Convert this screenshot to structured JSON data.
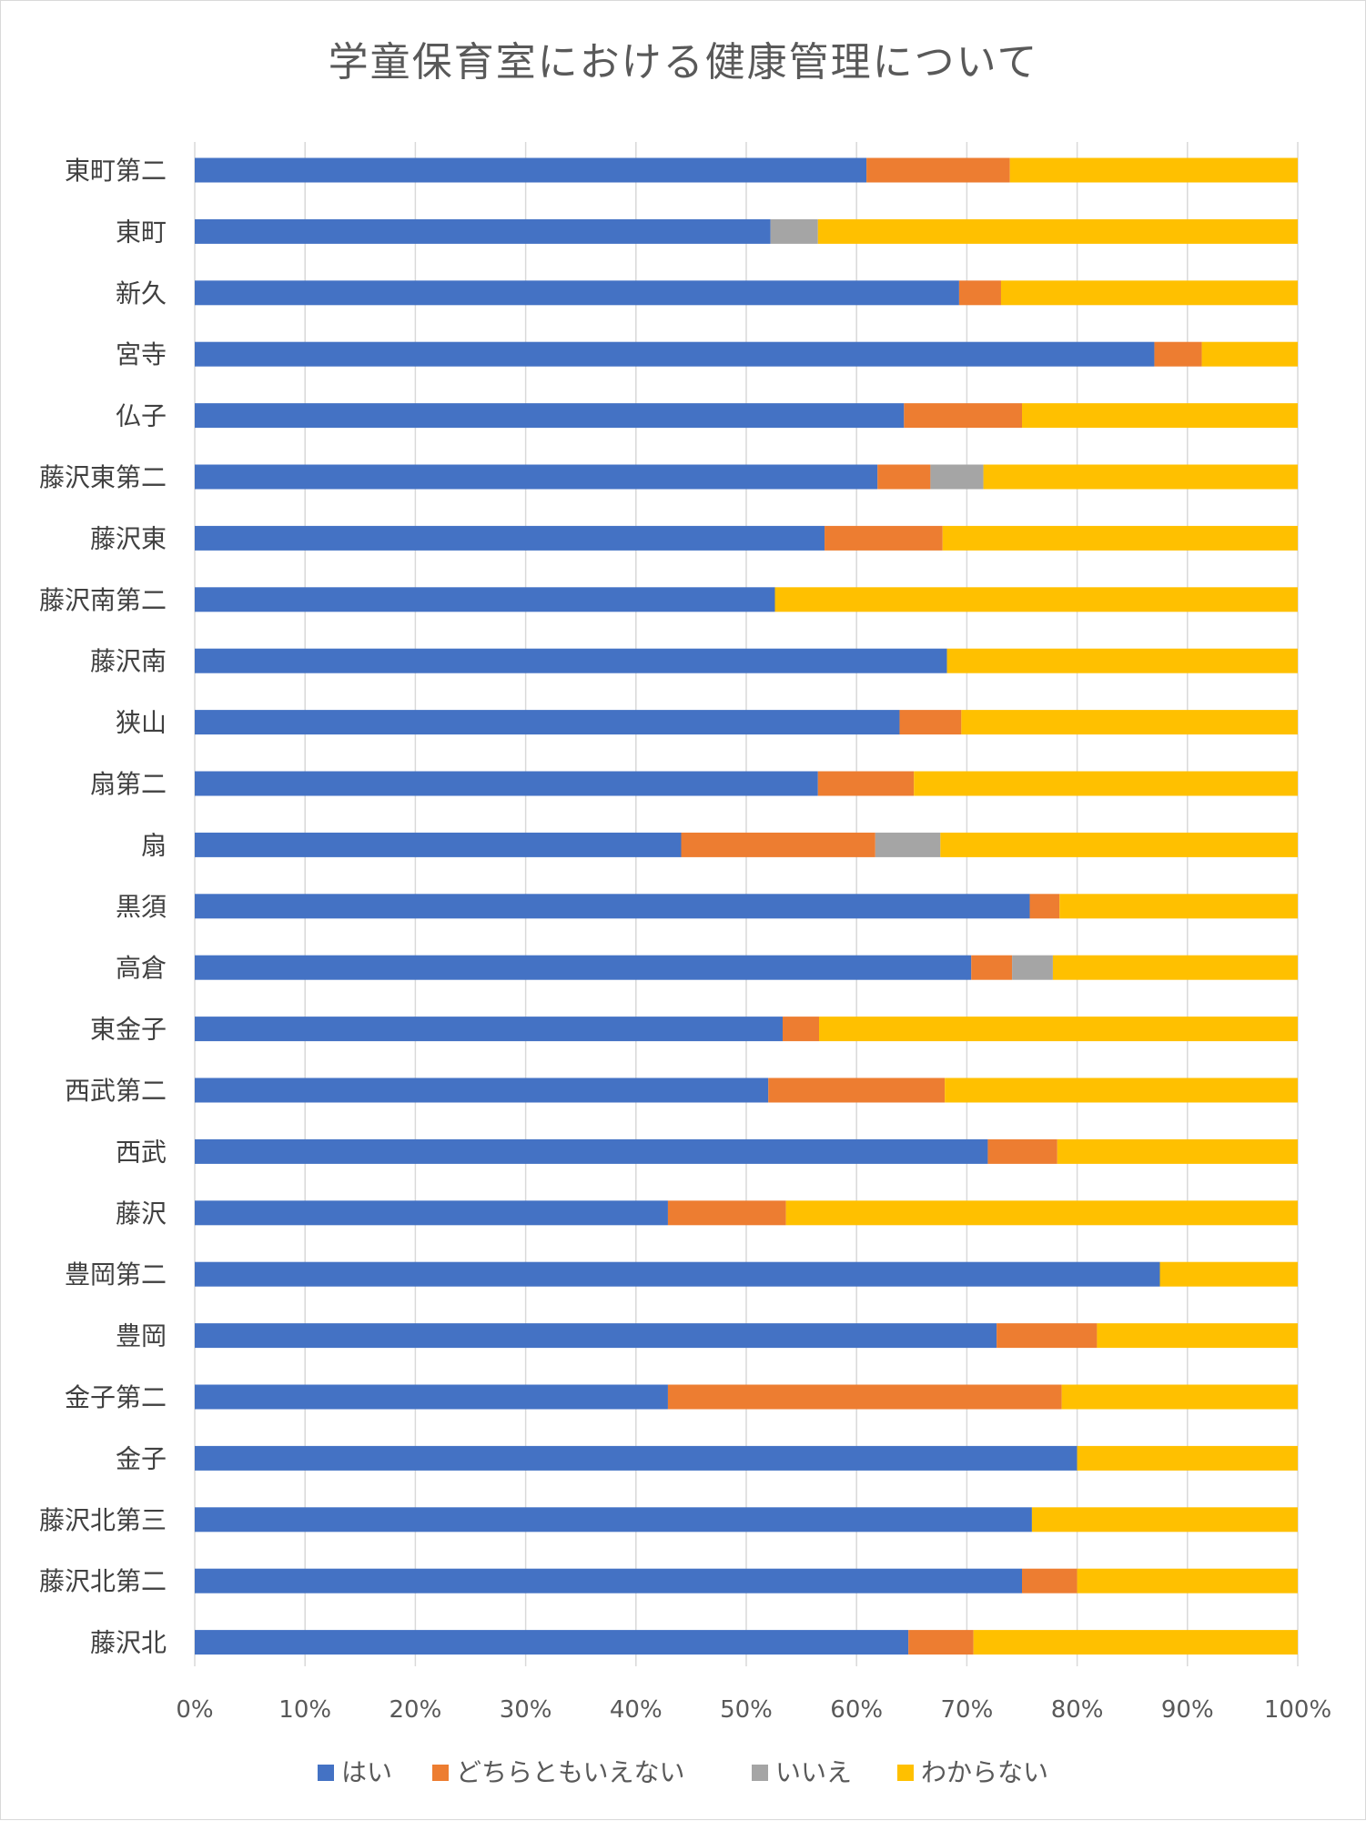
{
  "chart_data": {
    "type": "bar",
    "orientation": "horizontal",
    "stacked": "percent",
    "title": "学童保育室における健康管理について",
    "categories": [
      "東町第二",
      "東町",
      "新久",
      "宮寺",
      "仏子",
      "藤沢東第二",
      "藤沢東",
      "藤沢南第二",
      "藤沢南",
      "狭山",
      "扇第二",
      "扇",
      "黒須",
      "高倉",
      "東金子",
      "西武第二",
      "西武",
      "藤沢",
      "豊岡第二",
      "豊岡",
      "金子第二",
      "金子",
      "藤沢北第三",
      "藤沢北第二",
      "藤沢北"
    ],
    "series": [
      {
        "name": "はい",
        "color": "#4472c4",
        "values": [
          60.9,
          52.2,
          69.3,
          87.0,
          64.3,
          61.9,
          57.1,
          52.6,
          68.2,
          63.9,
          56.5,
          44.1,
          75.7,
          70.4,
          53.3,
          52.0,
          71.9,
          42.9,
          87.5,
          72.7,
          42.9,
          80.0,
          75.9,
          75.0,
          64.7
        ]
      },
      {
        "name": "どちらともいえない",
        "color": "#ed7d31",
        "values": [
          13.0,
          0,
          3.8,
          4.3,
          10.7,
          4.8,
          10.7,
          0,
          0,
          5.6,
          8.7,
          17.6,
          2.7,
          3.7,
          3.3,
          16.0,
          6.3,
          10.7,
          0,
          9.1,
          35.7,
          0,
          0,
          5.0,
          5.9
        ]
      },
      {
        "name": "いいえ",
        "color": "#a5a5a5",
        "values": [
          0,
          4.3,
          0,
          0,
          0,
          4.8,
          0,
          0,
          0,
          0,
          0,
          5.9,
          0,
          3.7,
          0,
          0,
          0,
          0,
          0,
          0,
          0,
          0,
          0,
          0,
          0
        ]
      },
      {
        "name": "わからない",
        "color": "#ffc000",
        "values": [
          26.1,
          43.5,
          26.9,
          8.7,
          25.0,
          28.5,
          32.2,
          47.4,
          31.8,
          30.5,
          34.8,
          32.4,
          21.6,
          22.2,
          43.4,
          32.0,
          21.8,
          46.4,
          12.5,
          18.2,
          21.4,
          20.0,
          24.1,
          20.0,
          29.4
        ]
      }
    ],
    "xlim": [
      0,
      100
    ],
    "x_ticks": [
      "0%",
      "10%",
      "20%",
      "30%",
      "40%",
      "50%",
      "60%",
      "70%",
      "80%",
      "90%",
      "100%"
    ],
    "grid": true,
    "legend": "bottom"
  }
}
